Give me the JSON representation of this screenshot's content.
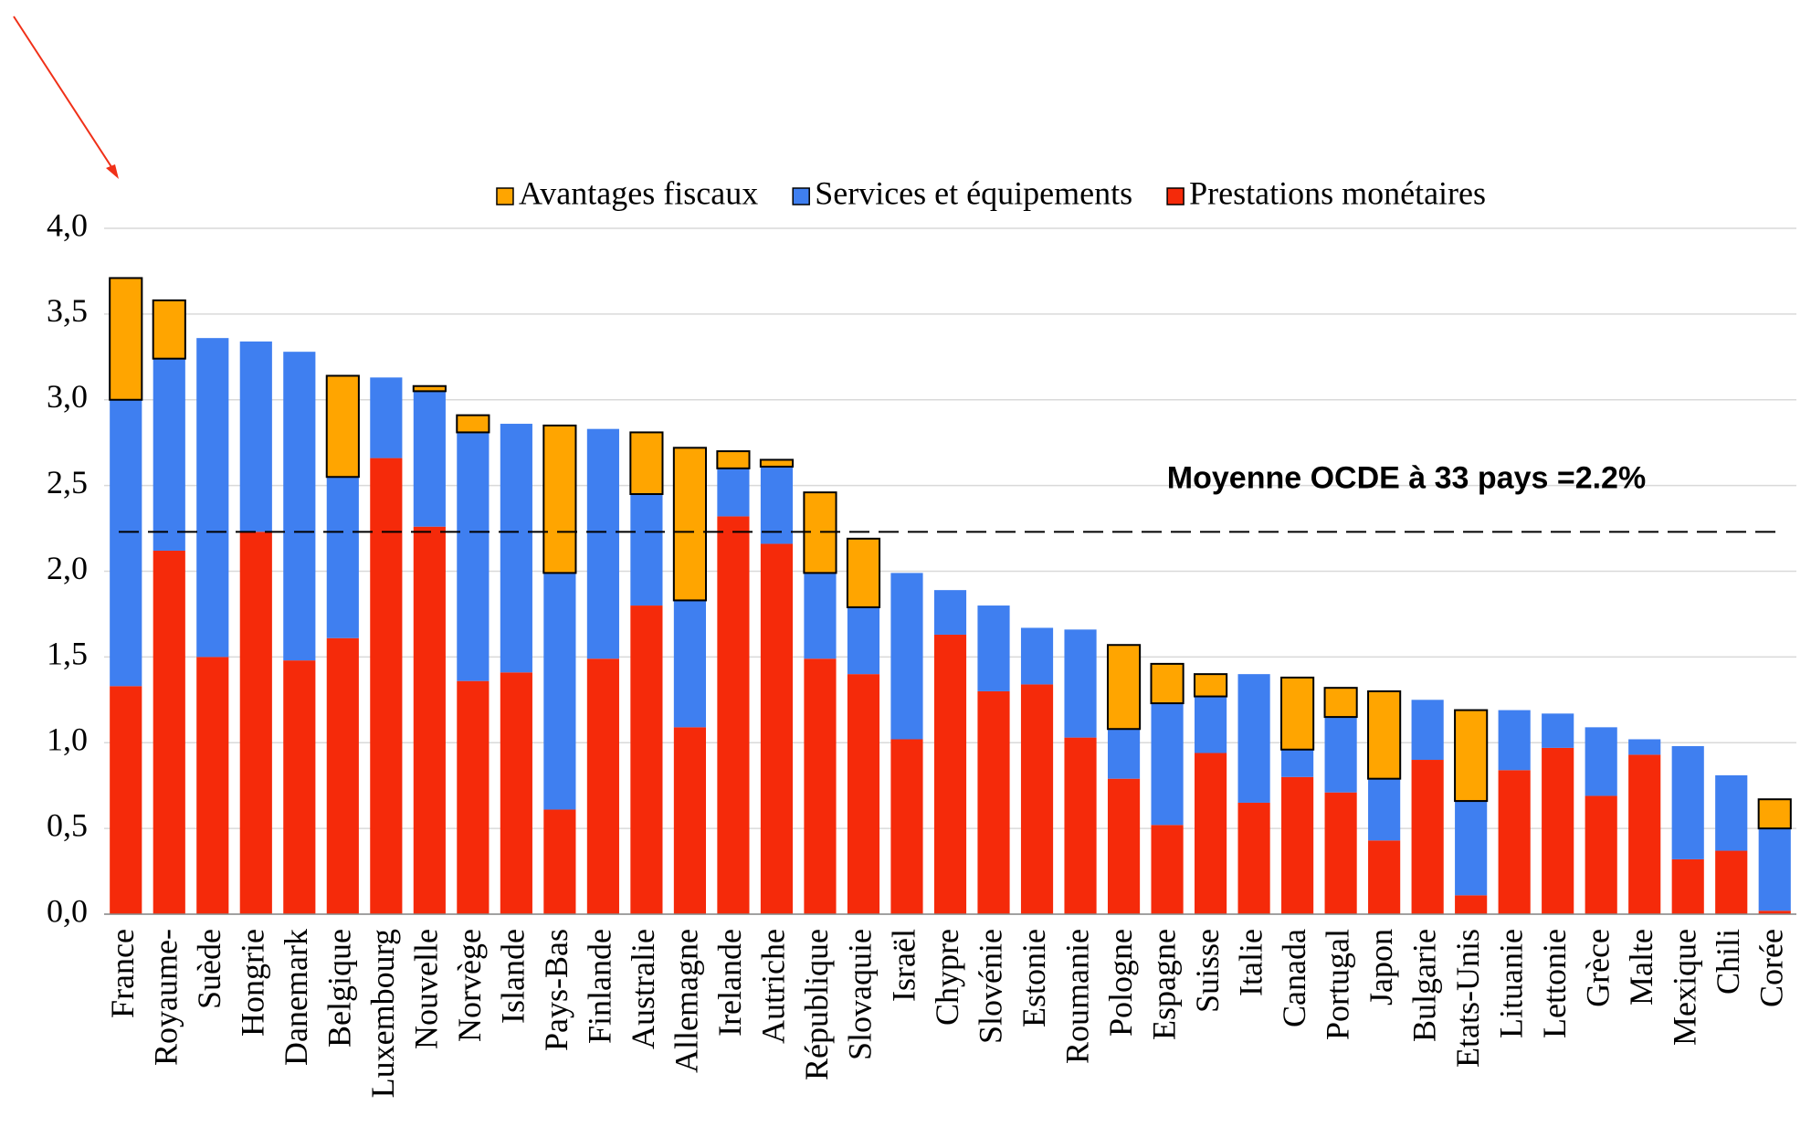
{
  "chart_data": {
    "type": "stacked_bar",
    "categories": [
      "France",
      "Royaume-",
      "Suède",
      "Hongrie",
      "Danemark",
      "Belgique",
      "Luxembourg",
      "Nouvelle",
      "Norvège",
      "Islande",
      "Pays-Bas",
      "Finlande",
      "Australie",
      "Allemagne",
      "Irelande",
      "Autriche",
      "République",
      "Slovaquie",
      "Israël",
      "Chypre",
      "Slovénie",
      "Estonie",
      "Roumanie",
      "Pologne",
      "Espagne",
      "Suisse",
      "Italie",
      "Canada",
      "Portugal",
      "Japon",
      "Bulgarie",
      "Etats-Unis",
      "Lituanie",
      "Lettonie",
      "Grèce",
      "Malte",
      "Mexique",
      "Chili",
      "Corée"
    ],
    "series": [
      {
        "name": "Avantages fiscaux",
        "color": "#ffa500",
        "values": [
          0.71,
          0.34,
          0,
          0,
          0,
          0.59,
          0,
          0.03,
          0.1,
          0,
          0.86,
          0,
          0.36,
          0.89,
          0.1,
          0.04,
          0.47,
          0.4,
          0,
          0,
          0,
          0,
          0,
          0.49,
          0.23,
          0.13,
          0,
          0.42,
          0.17,
          0.51,
          0,
          0.53,
          0,
          0,
          0,
          0,
          0,
          0,
          0.17
        ]
      },
      {
        "name": "Services et équipements",
        "color": "#3f7ff0",
        "values": [
          1.67,
          1.12,
          1.86,
          1.11,
          1.8,
          0.94,
          0.47,
          0.79,
          1.45,
          1.45,
          1.38,
          1.34,
          0.65,
          0.74,
          0.28,
          0.45,
          0.5,
          0.39,
          0.97,
          0.26,
          0.5,
          0.33,
          0.63,
          0.29,
          0.71,
          0.33,
          0.75,
          0.16,
          0.44,
          0.36,
          0.35,
          0.55,
          0.35,
          0.2,
          0.4,
          0.09,
          0.66,
          0.44,
          0.48
        ]
      },
      {
        "name": "Prestations monétaires",
        "color": "#f52a0a",
        "values": [
          1.33,
          2.12,
          1.5,
          2.23,
          1.48,
          1.61,
          2.66,
          2.26,
          1.36,
          1.41,
          0.61,
          1.49,
          1.8,
          1.09,
          2.32,
          2.16,
          1.49,
          1.4,
          1.02,
          1.63,
          1.3,
          1.34,
          1.03,
          0.79,
          0.52,
          0.94,
          0.65,
          0.8,
          0.71,
          0.43,
          0.9,
          0.11,
          0.84,
          0.97,
          0.69,
          0.93,
          0.32,
          0.37,
          0.02
        ]
      }
    ],
    "ylim": [
      0,
      4
    ],
    "yticks": [
      {
        "value": 0,
        "label": "0,0"
      },
      {
        "value": 0.5,
        "label": "0,5"
      },
      {
        "value": 1,
        "label": "1,0"
      },
      {
        "value": 1.5,
        "label": "1,5"
      },
      {
        "value": 2,
        "label": "2,0"
      },
      {
        "value": 2.5,
        "label": "2,5"
      },
      {
        "value": 3,
        "label": "3,0"
      },
      {
        "value": 3.5,
        "label": "3,5"
      },
      {
        "value": 4,
        "label": "4,0"
      }
    ],
    "grid": true,
    "average": {
      "value": 2.23,
      "label": "Moyenne OCDE à 33 pays =2.2%"
    }
  }
}
